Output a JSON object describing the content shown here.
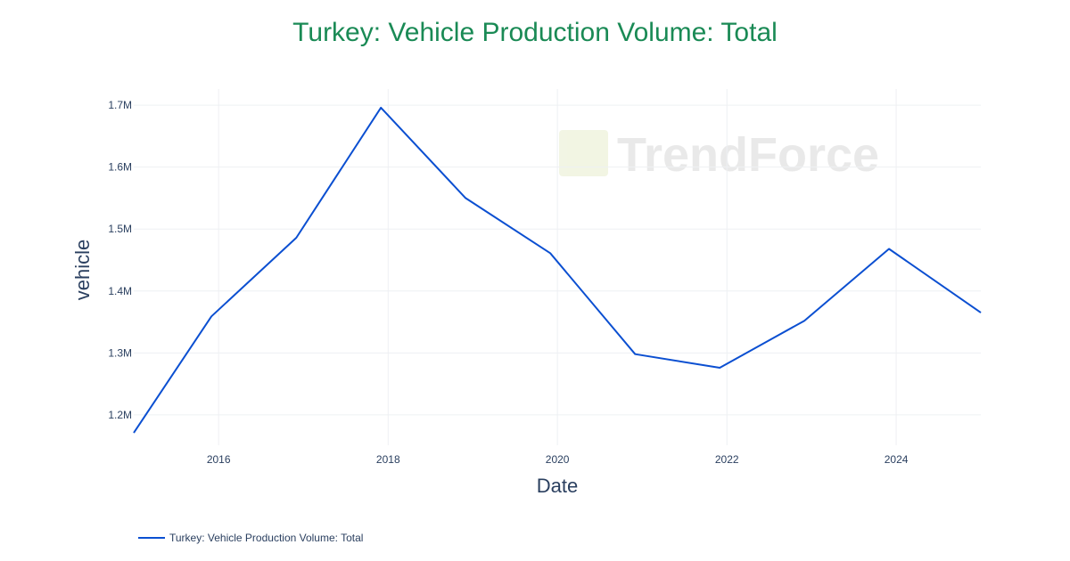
{
  "chart_data": {
    "type": "line",
    "title": "Turkey: Vehicle Production Volume: Total",
    "xlabel": "Date",
    "ylabel": "vehicle",
    "x_ticks": [
      "2016",
      "2018",
      "2020",
      "2022",
      "2024"
    ],
    "y_ticks": [
      "1.2M",
      "1.3M",
      "1.4M",
      "1.5M",
      "1.6M",
      "1.7M"
    ],
    "y_tick_values": [
      1200000,
      1300000,
      1400000,
      1500000,
      1600000,
      1700000
    ],
    "x_tick_dates": [
      "2016-01-01",
      "2018-01-01",
      "2020-01-01",
      "2022-01-01",
      "2024-01-01"
    ],
    "xlim": [
      "2014-12-31",
      "2024-12-31"
    ],
    "ylim": [
      1151000,
      1726000
    ],
    "grid": true,
    "legend_position": "bottom-left",
    "series": [
      {
        "name": "Turkey: Vehicle Production Volume: Total",
        "color": "#0b4fd1",
        "points": [
          {
            "x": "2014-12-31",
            "y": 1171000
          },
          {
            "x": "2015-12-01",
            "y": 1359000
          },
          {
            "x": "2016-12-01",
            "y": 1486000
          },
          {
            "x": "2017-12-01",
            "y": 1696000
          },
          {
            "x": "2018-12-01",
            "y": 1550000
          },
          {
            "x": "2019-12-01",
            "y": 1461000
          },
          {
            "x": "2020-12-01",
            "y": 1298000
          },
          {
            "x": "2021-12-01",
            "y": 1276000
          },
          {
            "x": "2022-12-01",
            "y": 1352000
          },
          {
            "x": "2023-12-01",
            "y": 1468000
          },
          {
            "x": "2024-12-31",
            "y": 1365000
          }
        ]
      }
    ]
  },
  "watermark": {
    "text": "TrendForce"
  }
}
